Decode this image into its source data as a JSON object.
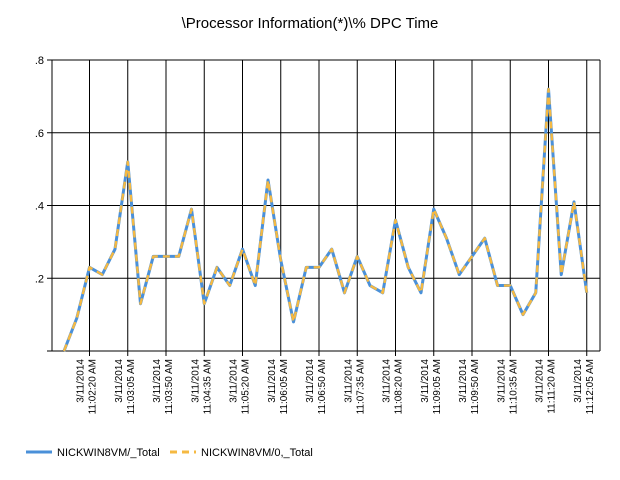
{
  "chart_data": {
    "type": "line",
    "title": "\\Processor Information(*)\\% DPC Time",
    "xlabel": "",
    "ylabel": "",
    "ylim": [
      0,
      0.8
    ],
    "yticks": [
      0,
      0.2,
      0.4,
      0.6,
      0.8
    ],
    "ytick_labels": [
      "",
      ".2",
      ".4",
      ".6",
      ".8"
    ],
    "grid": true,
    "legend_position": "bottom-left",
    "x_count": 44,
    "xtick_labels": [
      {
        "index": 2,
        "date": "3/11/2014",
        "time": "11:02:20 AM"
      },
      {
        "index": 5,
        "date": "3/11/2014",
        "time": "11:03:05 AM"
      },
      {
        "index": 8,
        "date": "3/11/2014",
        "time": "11:03:50 AM"
      },
      {
        "index": 11,
        "date": "3/11/2014",
        "time": "11:04:35 AM"
      },
      {
        "index": 14,
        "date": "3/11/2014",
        "time": "11:05:20 AM"
      },
      {
        "index": 17,
        "date": "3/11/2014",
        "time": "11:06:05 AM"
      },
      {
        "index": 20,
        "date": "3/11/2014",
        "time": "11:06:50 AM"
      },
      {
        "index": 23,
        "date": "3/11/2014",
        "time": "11:07:35 AM"
      },
      {
        "index": 26,
        "date": "3/11/2014",
        "time": "11:08:20 AM"
      },
      {
        "index": 29,
        "date": "3/11/2014",
        "time": "11:09:05 AM"
      },
      {
        "index": 32,
        "date": "3/11/2014",
        "time": "11:09:50 AM"
      },
      {
        "index": 35,
        "date": "3/11/2014",
        "time": "11:10:35 AM"
      },
      {
        "index": 38,
        "date": "3/11/2014",
        "time": "11:11:20 AM"
      },
      {
        "index": 41,
        "date": "3/11/2014",
        "time": "11:12:05 AM"
      }
    ],
    "series": [
      {
        "name": "NICKWIN8VM/_Total",
        "color": "#4a90d9",
        "style": "solid",
        "values": [
          0,
          0.09,
          0.23,
          0.21,
          0.28,
          0.52,
          0.13,
          0.26,
          0.26,
          0.26,
          0.39,
          0.13,
          0.23,
          0.18,
          0.28,
          0.18,
          0.47,
          0.25,
          0.08,
          0.23,
          0.23,
          0.28,
          0.16,
          0.26,
          0.18,
          0.16,
          0.36,
          0.23,
          0.16,
          0.39,
          0.31,
          0.21,
          0.26,
          0.31,
          0.18,
          0.18,
          0.1,
          0.16,
          0.72,
          0.21,
          0.41,
          0.16
        ]
      },
      {
        "name": "NICKWIN8VM/0,_Total",
        "color": "#f5b942",
        "style": "dashed",
        "values": [
          0,
          0.09,
          0.23,
          0.21,
          0.28,
          0.52,
          0.13,
          0.26,
          0.26,
          0.26,
          0.39,
          0.13,
          0.23,
          0.18,
          0.28,
          0.18,
          0.47,
          0.25,
          0.08,
          0.23,
          0.23,
          0.28,
          0.16,
          0.26,
          0.18,
          0.16,
          0.36,
          0.23,
          0.16,
          0.39,
          0.31,
          0.21,
          0.26,
          0.31,
          0.18,
          0.18,
          0.1,
          0.16,
          0.72,
          0.21,
          0.41,
          0.16
        ]
      }
    ]
  }
}
